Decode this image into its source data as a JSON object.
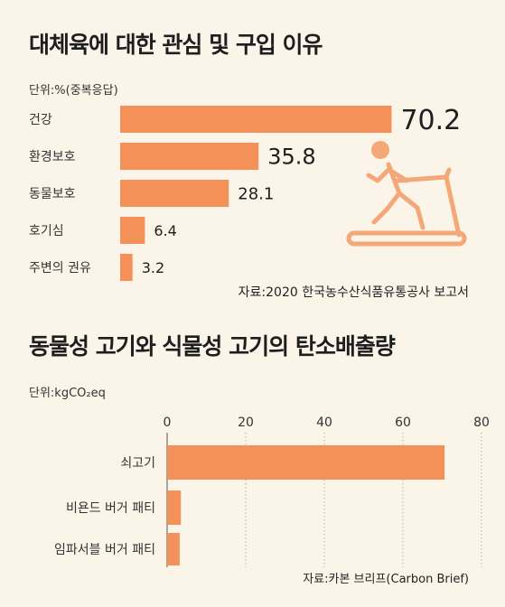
{
  "colors": {
    "bar": "#f49158",
    "background": "#fbf4e9",
    "icon": "#f5a877",
    "text": "#222222"
  },
  "chart_data": [
    {
      "type": "bar",
      "orientation": "horizontal",
      "title": "대체육에 대한 관심 및 구입 이유",
      "unit": "단위:%(중복응답)",
      "categories": [
        "건강",
        "환경보호",
        "동물보호",
        "호기심",
        "주변의 권유"
      ],
      "values": [
        70.2,
        35.8,
        28.1,
        6.4,
        3.2
      ],
      "value_labels": [
        "70.2",
        "35.8",
        "28.1",
        "6.4",
        "3.2"
      ],
      "source": "자료:2020 한국농수산식품유통공사 보고서",
      "icon": "treadmill-runner-icon"
    },
    {
      "type": "bar",
      "orientation": "horizontal",
      "title": "동물성 고기와 식물성 고기의 탄소배출량",
      "unit": "단위:kgCO₂eq",
      "categories": [
        "쇠고기",
        "비욘드 버거 패티",
        "임파서블 버거 패티"
      ],
      "values": [
        70.6,
        3.5,
        3.2
      ],
      "xlim": [
        0,
        80
      ],
      "xticks": [
        0,
        20,
        40,
        60,
        80
      ],
      "grid": true,
      "source": "자료:카본 브리프(Carbon Brief)"
    }
  ]
}
